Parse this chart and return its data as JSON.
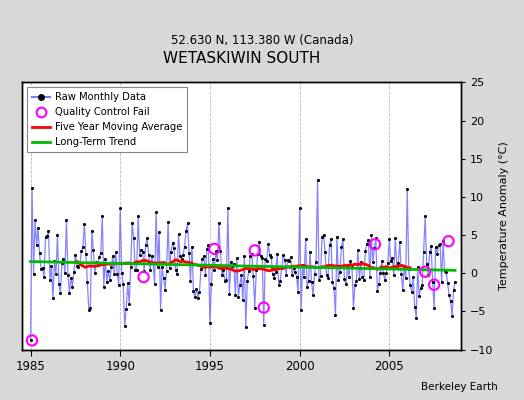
{
  "title": "WETASKIWIN SOUTH",
  "subtitle": "52.630 N, 113.380 W (Canada)",
  "ylabel": "Temperature Anomaly (°C)",
  "attribution": "Berkeley Earth",
  "xlim": [
    1984.5,
    2009.0
  ],
  "ylim": [
    -10,
    25
  ],
  "yticks": [
    -10,
    -5,
    0,
    5,
    10,
    15,
    20,
    25
  ],
  "xticks": [
    1985,
    1990,
    1995,
    2000,
    2005
  ],
  "bg_color": "#d8d8d8",
  "plot_bg_color": "#ffffff",
  "raw_line_color": "#7777ff",
  "raw_dot_color": "#000000",
  "moving_avg_color": "#ff0000",
  "trend_color": "#00bb00",
  "qc_fail_color": "#ff00ff",
  "seed": 17
}
